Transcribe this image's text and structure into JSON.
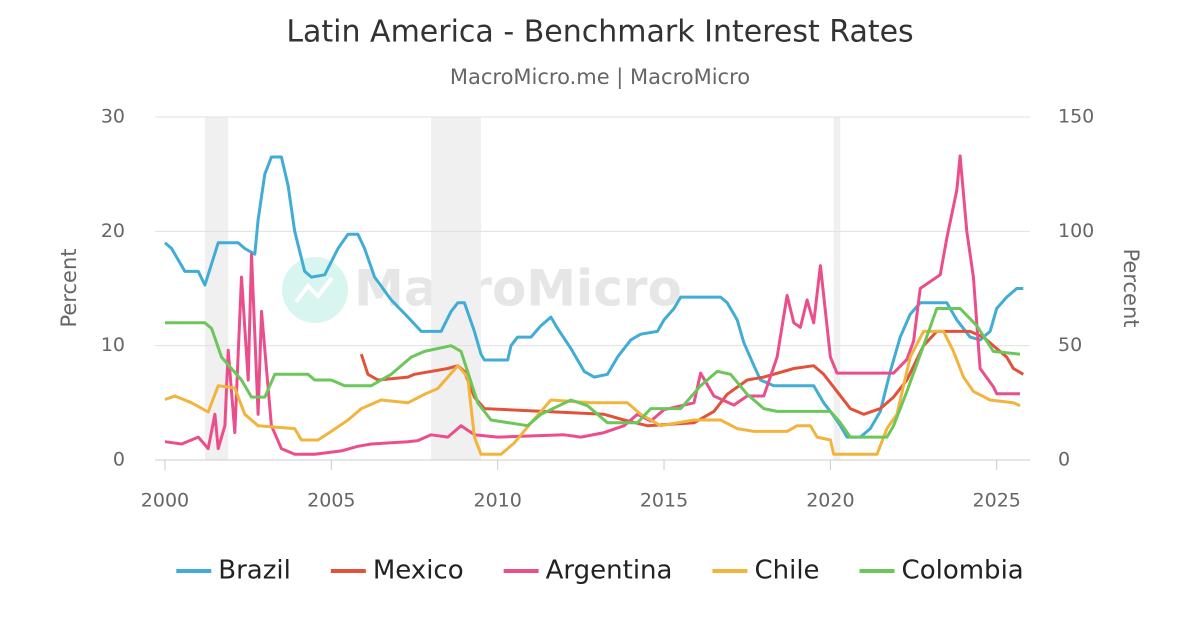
{
  "chart_data": {
    "type": "line",
    "title": "Latin America - Benchmark Interest Rates",
    "subtitle": "MacroMicro.me | MacroMicro",
    "watermark": "MacroMicro",
    "y_label": "Percent",
    "y2_label": "Percent",
    "xlim": [
      1999.7,
      2026
    ],
    "xticks": [
      2000,
      2005,
      2010,
      2015,
      2020,
      2025
    ],
    "ylim": [
      0,
      30
    ],
    "yticks": [
      0,
      10,
      20,
      30
    ],
    "y2lim": [
      0,
      150
    ],
    "y2ticks": [
      0,
      50,
      100,
      150
    ],
    "grid": true,
    "legend": "bottom",
    "shaded_periods": [
      [
        2001.2,
        2001.9
      ],
      [
        2008.0,
        2009.5
      ],
      [
        2020.1,
        2020.3
      ]
    ],
    "series": [
      {
        "name": "Brazil",
        "color": "#41acd6",
        "x": [
          2000,
          2000.2,
          2000.6,
          2001.0,
          2001.2,
          2001.6,
          2002.2,
          2002.4,
          2002.7,
          2002.8,
          2003.0,
          2003.2,
          2003.5,
          2003.7,
          2003.9,
          2004.2,
          2004.4,
          2004.8,
          2005.2,
          2005.5,
          2005.8,
          2006.0,
          2006.3,
          2006.8,
          2007.3,
          2007.7,
          2008.3,
          2008.6,
          2008.8,
          2009.0,
          2009.3,
          2009.5,
          2009.6,
          2010.3,
          2010.4,
          2010.6,
          2011.0,
          2011.3,
          2011.6,
          2011.8,
          2012.2,
          2012.6,
          2012.9,
          2013.3,
          2013.6,
          2014.0,
          2014.3,
          2014.8,
          2015.0,
          2015.3,
          2015.5,
          2016.7,
          2016.9,
          2017.2,
          2017.4,
          2017.7,
          2017.9,
          2018.3,
          2019.5,
          2019.8,
          2020.0,
          2020.3,
          2020.5,
          2020.9,
          2021.2,
          2021.5,
          2021.8,
          2022.1,
          2022.4,
          2022.7,
          2023.5,
          2023.8,
          2024.2,
          2024.5,
          2024.8,
          2025.0,
          2025.3,
          2025.6,
          2025.8
        ],
        "values": [
          19,
          18.5,
          16.5,
          16.5,
          15.3,
          19,
          19,
          18.5,
          18,
          21,
          25,
          26.5,
          26.5,
          24,
          20,
          16.5,
          16,
          16.2,
          18.5,
          19.75,
          19.75,
          18.5,
          16,
          14,
          12.5,
          11.25,
          11.25,
          13,
          13.75,
          13.75,
          11.25,
          9.25,
          8.75,
          8.75,
          10,
          10.75,
          10.75,
          11.75,
          12.5,
          11.5,
          9.75,
          7.75,
          7.25,
          7.5,
          9,
          10.5,
          11,
          11.25,
          12.25,
          13.25,
          14.25,
          14.25,
          13.75,
          12.25,
          10.25,
          8.25,
          7,
          6.5,
          6.5,
          5,
          4.25,
          3,
          2,
          2,
          2.75,
          4.25,
          7.75,
          10.75,
          12.75,
          13.75,
          13.75,
          12.25,
          10.75,
          10.5,
          11.25,
          13.25,
          14.25,
          15,
          15
        ]
      },
      {
        "name": "Mexico",
        "color": "#e0533a",
        "x": [
          2005.9,
          2006.1,
          2006.4,
          2007.3,
          2007.5,
          2008.5,
          2008.8,
          2009.0,
          2009.3,
          2009.6,
          2013.2,
          2013.8,
          2014.5,
          2015.9,
          2016.5,
          2016.9,
          2017.5,
          2018.0,
          2018.9,
          2019.5,
          2019.8,
          2020.2,
          2020.6,
          2021.0,
          2021.5,
          2021.9,
          2022.3,
          2022.8,
          2023.2,
          2024.2,
          2024.6,
          2024.9,
          2025.3,
          2025.5,
          2025.8
        ],
        "values": [
          9.25,
          7.5,
          7,
          7.25,
          7.5,
          8,
          8.25,
          7.75,
          5.5,
          4.5,
          4,
          3.5,
          3,
          3.25,
          4.25,
          5.75,
          7,
          7.25,
          8,
          8.25,
          7.5,
          6,
          4.5,
          4,
          4.5,
          5.5,
          7,
          10,
          11.25,
          11.25,
          10.75,
          10,
          9,
          8,
          7.5
        ]
      },
      {
        "name": "Argentina",
        "color": "#ea4f8c",
        "axis": "y2",
        "x": [
          2000,
          2000.5,
          2001.0,
          2001.3,
          2001.5,
          2001.6,
          2001.8,
          2001.9,
          2002.1,
          2002.3,
          2002.5,
          2002.6,
          2002.8,
          2002.9,
          2003.2,
          2003.5,
          2003.9,
          2004.5,
          2005.3,
          2005.8,
          2006.2,
          2007.3,
          2007.6,
          2008.0,
          2008.5,
          2008.9,
          2009.3,
          2010.0,
          2012.0,
          2012.5,
          2013.2,
          2013.8,
          2014.2,
          2014.6,
          2015.0,
          2015.9,
          2016.1,
          2016.5,
          2017.1,
          2017.5,
          2018.0,
          2018.4,
          2018.7,
          2018.9,
          2019.1,
          2019.3,
          2019.5,
          2019.7,
          2020.0,
          2020.2,
          2021.9,
          2022.3,
          2022.5,
          2022.7,
          2023.3,
          2023.5,
          2023.8,
          2023.9,
          2024.1,
          2024.3,
          2024.5,
          2024.9,
          2025.0,
          2025.7
        ],
        "values": [
          8,
          7,
          10,
          5,
          20,
          5,
          15,
          48,
          12,
          80,
          35,
          90,
          20,
          65,
          15,
          5,
          2.5,
          2.5,
          4,
          6,
          7,
          8,
          8.5,
          11,
          10,
          15,
          11,
          10,
          11,
          10,
          12,
          15,
          20,
          17,
          22,
          25,
          38,
          28,
          24,
          28,
          28,
          45,
          72,
          60,
          58,
          70,
          60,
          85,
          45,
          38,
          38,
          44,
          52,
          75,
          81,
          97,
          118,
          133,
          100,
          80,
          40,
          32,
          29,
          29
        ]
      },
      {
        "name": "Chile",
        "color": "#f2b43d",
        "x": [
          2000,
          2000.3,
          2000.8,
          2001.3,
          2001.6,
          2002.1,
          2002.4,
          2002.8,
          2003.9,
          2004.1,
          2004.6,
          2005.0,
          2005.5,
          2005.9,
          2006.5,
          2007.3,
          2007.8,
          2008.2,
          2008.8,
          2009.1,
          2009.3,
          2009.5,
          2010.1,
          2010.5,
          2011.0,
          2011.6,
          2012.8,
          2013.9,
          2014.3,
          2014.9,
          2015.9,
          2016.7,
          2017.2,
          2017.7,
          2018.7,
          2019.0,
          2019.4,
          2019.6,
          2020.0,
          2020.1,
          2021.4,
          2021.7,
          2022.0,
          2022.4,
          2022.8,
          2023.4,
          2023.7,
          2024.0,
          2024.3,
          2024.8,
          2025.5,
          2025.7
        ],
        "values": [
          5.3,
          5.6,
          5,
          4.2,
          6.5,
          6.3,
          4,
          3,
          2.75,
          1.75,
          1.75,
          2.5,
          3.5,
          4.5,
          5.25,
          5,
          5.75,
          6.25,
          8.25,
          7.25,
          2,
          0.5,
          0.5,
          1.5,
          3.25,
          5.25,
          5,
          5,
          4,
          3,
          3.5,
          3.5,
          2.75,
          2.5,
          2.5,
          3,
          3,
          2,
          1.75,
          0.5,
          0.5,
          2.75,
          4,
          9,
          11.25,
          11.25,
          9.5,
          7.25,
          6,
          5.25,
          5,
          4.75
        ]
      },
      {
        "name": "Colombia",
        "color": "#6cc65a",
        "x": [
          2000,
          2001.2,
          2001.4,
          2001.7,
          2002.3,
          2002.6,
          2003.0,
          2003.3,
          2004.3,
          2004.5,
          2005.0,
          2005.4,
          2006.2,
          2006.8,
          2007.4,
          2007.8,
          2008.6,
          2008.9,
          2009.4,
          2009.8,
          2010.9,
          2011.3,
          2012.2,
          2012.7,
          2013.3,
          2014.2,
          2014.6,
          2015.5,
          2016.1,
          2016.6,
          2017.0,
          2017.5,
          2018.0,
          2018.4,
          2020.0,
          2020.3,
          2020.6,
          2021.7,
          2021.9,
          2022.3,
          2022.8,
          2023.2,
          2023.9,
          2024.4,
          2024.9,
          2025.7
        ],
        "values": [
          12,
          12,
          11.5,
          9,
          7,
          5.5,
          5.5,
          7.5,
          7.5,
          7,
          7,
          6.5,
          6.5,
          7.5,
          9,
          9.5,
          10,
          9.5,
          5,
          3.5,
          3,
          4,
          5.25,
          4.75,
          3.25,
          3.25,
          4.5,
          4.5,
          6.5,
          7.75,
          7.5,
          5.75,
          4.5,
          4.25,
          4.25,
          3.25,
          2,
          2,
          3,
          6,
          10,
          13.25,
          13.25,
          11.75,
          9.5,
          9.25
        ]
      }
    ]
  }
}
